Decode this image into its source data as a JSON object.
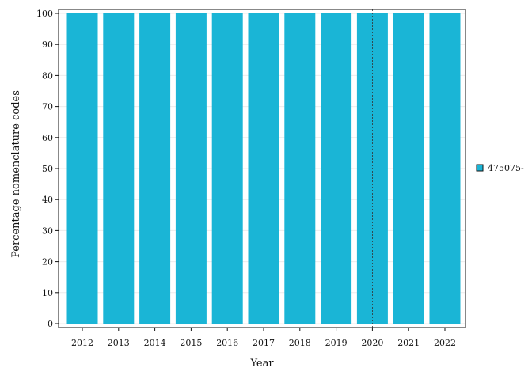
{
  "chart_data": {
    "type": "bar",
    "categories": [
      "2012",
      "2013",
      "2014",
      "2015",
      "2016",
      "2017",
      "2018",
      "2019",
      "2020",
      "2021",
      "2022"
    ],
    "series": [
      {
        "name": "475075-",
        "values": [
          100,
          100,
          100,
          100,
          100,
          100,
          100,
          100,
          100,
          100,
          100
        ],
        "color": "#1ab5d6"
      }
    ],
    "xlabel": "Year",
    "ylabel": "Percentage nomenclature codes",
    "ylim": [
      0,
      100
    ],
    "yticks": [
      0,
      10,
      20,
      30,
      40,
      50,
      60,
      70,
      80,
      90,
      100
    ],
    "reference_line_at": "2020",
    "grid": true,
    "legend_position": "right"
  }
}
